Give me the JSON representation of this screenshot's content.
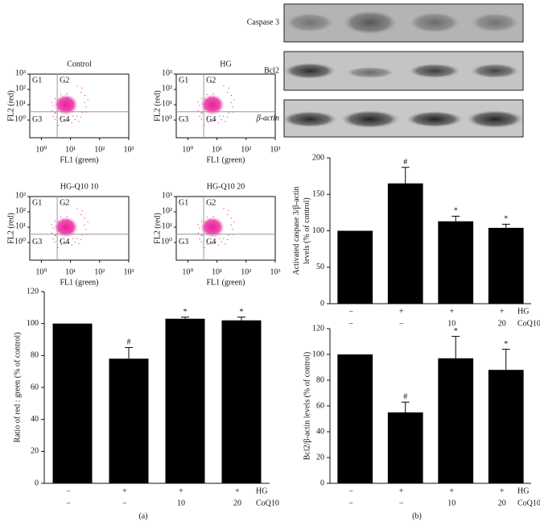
{
  "chart_data": [
    {
      "type": "flow",
      "title": "Control",
      "xlabel": "FL1 (green)",
      "ylabel": "FL2 (red)",
      "log": true,
      "xlim": [
        0.4,
        1000
      ],
      "ylim": [
        0.07,
        1000
      ],
      "xticks": [
        {
          "value": 1,
          "label": "10⁰"
        },
        {
          "value": 10,
          "label": "10¹"
        },
        {
          "value": 100,
          "label": "10²"
        },
        {
          "value": 1000,
          "label": "10³"
        }
      ],
      "yticks": [
        {
          "value": 1,
          "label": "10⁰"
        },
        {
          "value": 10,
          "label": "10¹"
        },
        {
          "value": 100,
          "label": "10²"
        },
        {
          "value": 1000,
          "label": "10³"
        }
      ],
      "gate": {
        "x": 3.5,
        "y": 3.5
      },
      "quadrants": [
        "G1",
        "G2",
        "G3",
        "G4"
      ],
      "color": "#e8209a"
    },
    {
      "type": "flow",
      "title": "HG",
      "xlabel": "FL1 (green)",
      "ylabel": "FL2 (red)",
      "log": true,
      "xlim": [
        0.4,
        1000
      ],
      "ylim": [
        0.07,
        1000
      ],
      "xticks": [
        {
          "value": 1,
          "label": "10⁰"
        },
        {
          "value": 10,
          "label": "10¹"
        },
        {
          "value": 100,
          "label": "10²"
        },
        {
          "value": 1000,
          "label": "10³"
        }
      ],
      "yticks": [
        {
          "value": 1,
          "label": "10⁰"
        },
        {
          "value": 10,
          "label": "10¹"
        },
        {
          "value": 100,
          "label": "10²"
        },
        {
          "value": 1000,
          "label": "10³"
        }
      ],
      "gate": {
        "x": 3.5,
        "y": 3.5
      },
      "quadrants": [
        "G1",
        "G2",
        "G3",
        "G4"
      ],
      "color": "#e8209a"
    },
    {
      "type": "flow",
      "title": "HG-Q10 10",
      "xlabel": "FL1 (green)",
      "ylabel": "FL2 (red)",
      "log": true,
      "xlim": [
        0.4,
        1000
      ],
      "ylim": [
        0.07,
        1000
      ],
      "xticks": [
        {
          "value": 1,
          "label": "10⁰"
        },
        {
          "value": 10,
          "label": "10¹"
        },
        {
          "value": 100,
          "label": "10²"
        },
        {
          "value": 1000,
          "label": "10³"
        }
      ],
      "yticks": [
        {
          "value": 1,
          "label": "10⁰"
        },
        {
          "value": 10,
          "label": "10¹"
        },
        {
          "value": 100,
          "label": "10²"
        },
        {
          "value": 1000,
          "label": "10³"
        }
      ],
      "gate": {
        "x": 3.5,
        "y": 3.5
      },
      "quadrants": [
        "G1",
        "G2",
        "G3",
        "G4"
      ],
      "color": "#e8209a"
    },
    {
      "type": "flow",
      "title": "HG-Q10 20",
      "xlabel": "FL1 (green)",
      "ylabel": "FL2 (red)",
      "log": true,
      "xlim": [
        0.4,
        1000
      ],
      "ylim": [
        0.07,
        1000
      ],
      "xticks": [
        {
          "value": 1,
          "label": "10⁰"
        },
        {
          "value": 10,
          "label": "10¹"
        },
        {
          "value": 100,
          "label": "10²"
        },
        {
          "value": 1000,
          "label": "10³"
        }
      ],
      "yticks": [
        {
          "value": 1,
          "label": "10⁰"
        },
        {
          "value": 10,
          "label": "10¹"
        },
        {
          "value": 100,
          "label": "10²"
        },
        {
          "value": 1000,
          "label": "10³"
        }
      ],
      "gate": {
        "x": 3.5,
        "y": 3.5
      },
      "quadrants": [
        "G1",
        "G2",
        "G3",
        "G4"
      ],
      "color": "#e8209a"
    },
    {
      "type": "bar",
      "ylabel": [
        "Ratio of red : green (% of control)"
      ],
      "values": [
        100,
        78,
        103,
        102
      ],
      "errors": [
        0,
        7,
        1,
        2
      ],
      "markers": [
        null,
        "#",
        "*",
        "*"
      ],
      "color": "#000000",
      "ylim": [
        0,
        120
      ],
      "yticks": [
        0,
        20,
        40,
        60,
        80,
        100,
        120
      ],
      "conditions": [
        {
          "name": "HG",
          "values": [
            "−",
            "+",
            "+",
            "+"
          ]
        },
        {
          "name": "CoQ10",
          "values": [
            "−",
            "−",
            "10",
            "20"
          ]
        }
      ]
    },
    {
      "type": "bar",
      "ylabel": [
        "Activated caspase 3/β-actin",
        "levels (% of control)"
      ],
      "values": [
        100,
        165,
        113,
        104
      ],
      "errors": [
        0,
        22,
        7,
        5
      ],
      "markers": [
        null,
        "#",
        "*",
        "*"
      ],
      "color": "#000000",
      "ylim": [
        0,
        200
      ],
      "yticks": [
        0,
        50,
        100,
        150,
        200
      ],
      "conditions": [
        {
          "name": "HG",
          "values": [
            "−",
            "+",
            "+",
            "+"
          ]
        },
        {
          "name": "CoQ10",
          "values": [
            "−",
            "−",
            "10",
            "20"
          ]
        }
      ]
    },
    {
      "type": "bar",
      "ylabel": [
        "Bcl2/β-actin levels (% of control)"
      ],
      "values": [
        100,
        55,
        97,
        88
      ],
      "errors": [
        0,
        8,
        17,
        16
      ],
      "markers": [
        null,
        "#",
        "*",
        "*"
      ],
      "color": "#000000",
      "ylim": [
        0,
        120
      ],
      "yticks": [
        0,
        20,
        40,
        60,
        80,
        100,
        120
      ],
      "conditions": [
        {
          "name": "HG",
          "values": [
            "−",
            "+",
            "+",
            "+"
          ]
        },
        {
          "name": "CoQ10",
          "values": [
            "−",
            "−",
            "10",
            "20"
          ]
        }
      ]
    }
  ],
  "blot": {
    "labels": [
      "Caspase 3",
      "Bcl2",
      "β-actin"
    ]
  },
  "panel_labels": [
    "(a)",
    "(b)"
  ]
}
